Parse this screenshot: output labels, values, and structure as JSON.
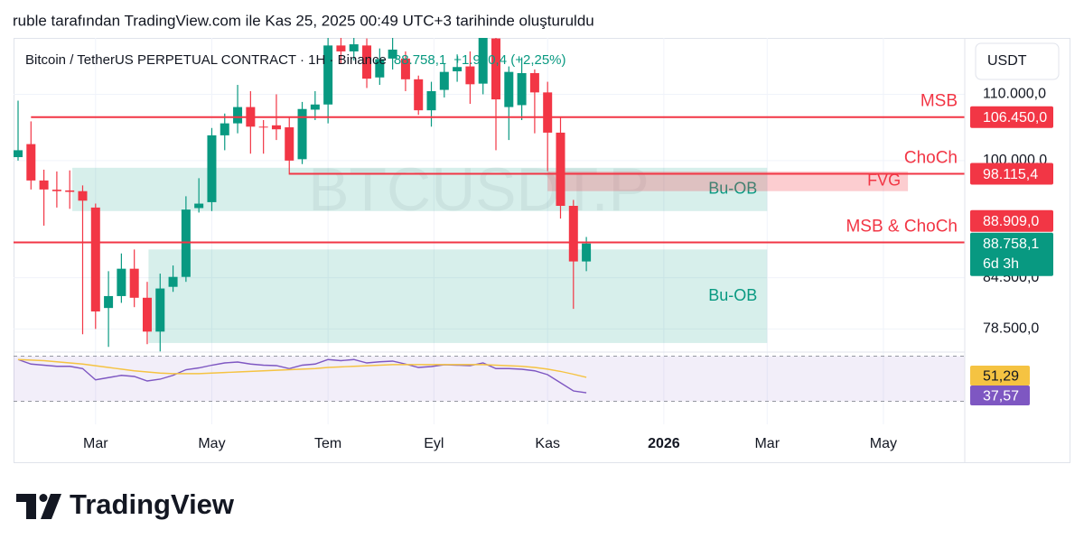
{
  "header": {
    "text": "ruble tarafından TradingView.com ile Kas 25, 2025 00:49 UTC+3 tarihinde oluşturuldu"
  },
  "brand": "TradingView",
  "chart_data": [
    {
      "type": "candlestick",
      "title": "Bitcoin / TetherUS PERPETUAL CONTRACT · 1H · Binance",
      "last_label": "88.758,1",
      "change": "+1.950,4 (+2,25%)",
      "countdown": "6d 3h",
      "unit": "USDT",
      "watermark": "BTCUSDT.P",
      "up_color": "#089981",
      "down_color": "#f23645",
      "log_scale": true,
      "grid": true,
      "x": [
        0,
        1,
        2,
        3,
        4,
        5,
        6,
        7,
        8,
        9,
        10,
        11,
        12,
        13,
        14,
        15,
        16,
        17,
        18,
        19,
        20,
        21,
        22,
        23,
        24,
        25,
        26,
        27,
        28,
        29,
        30,
        31,
        32,
        33,
        34,
        35,
        36,
        37,
        38,
        39,
        40,
        41,
        42,
        43,
        44
      ],
      "open": [
        100500,
        102400,
        97180,
        95900,
        95800,
        95700,
        93470,
        80900,
        82300,
        85600,
        82100,
        78200,
        83400,
        84600,
        93400,
        94200,
        103700,
        105500,
        108000,
        105000,
        105200,
        104900,
        100200,
        107600,
        108400,
        118000,
        117000,
        118000,
        112700,
        115800,
        115800,
        112400,
        107500,
        110700,
        113700,
        114500,
        111700,
        119200,
        108000,
        108300,
        113400,
        110300,
        104100,
        93700,
        86500
      ],
      "high": [
        109000,
        105800,
        98700,
        98450,
        98600,
        96500,
        94000,
        85300,
        87500,
        88000,
        84000,
        85000,
        86000,
        95000,
        97500,
        104800,
        107000,
        111500,
        110500,
        106000,
        110000,
        106500,
        108800,
        110500,
        119600,
        119600,
        119600,
        119200,
        117500,
        119600,
        117000,
        113000,
        112000,
        115000,
        116500,
        117000,
        119600,
        119600,
        114500,
        116000,
        114000,
        112000,
        106500,
        94500,
        89600
      ],
      "low": [
        100000,
        95930,
        91070,
        93470,
        93300,
        77900,
        78500,
        76500,
        81500,
        81000,
        76800,
        76000,
        82800,
        84000,
        92800,
        93000,
        101500,
        104000,
        101000,
        101000,
        103000,
        98000,
        99500,
        106000,
        105500,
        115000,
        115500,
        111000,
        111500,
        114000,
        110500,
        106800,
        105000,
        109500,
        112000,
        108500,
        110000,
        101500,
        103000,
        106000,
        104000,
        98500,
        92000,
        80800,
        85300
      ],
      "close": [
        101500,
        97180,
        95930,
        95700,
        95600,
        94400,
        80500,
        82300,
        85600,
        82100,
        78200,
        83200,
        84600,
        93200,
        94000,
        103700,
        105500,
        108000,
        105000,
        104900,
        104600,
        100000,
        107700,
        108400,
        118000,
        117000,
        118200,
        112500,
        115700,
        117300,
        112400,
        107500,
        110500,
        113600,
        114400,
        111600,
        119600,
        109200,
        113600,
        113400,
        110300,
        104100,
        93700,
        86500,
        88758.1
      ],
      "xlim": [
        -0.35,
        73.3
      ],
      "xticks": [
        {
          "value": 6,
          "label": "Mar"
        },
        {
          "value": 15,
          "label": "May"
        },
        {
          "value": 24,
          "label": "Tem"
        },
        {
          "value": 32.2,
          "label": "Eyl"
        },
        {
          "value": 41,
          "label": "Kas"
        },
        {
          "value": 50,
          "label": "2026"
        },
        {
          "value": 58,
          "label": "Mar"
        },
        {
          "value": 67,
          "label": "May"
        }
      ],
      "ylim": [
        75930,
        119600
      ],
      "yticks": [
        {
          "value": 78500,
          "label": "78.500,0"
        },
        {
          "value": 84500,
          "label": "84.500,0"
        },
        {
          "value": 100000,
          "label": "100.000,0"
        },
        {
          "value": 110000,
          "label": "110.000,0"
        }
      ],
      "levels": [
        {
          "name": "MSB",
          "value": 106450,
          "label": "106.450,0",
          "from": 1,
          "color": "#f23645"
        },
        {
          "name": "ChoCh",
          "value": 98115.4,
          "label": "98.115,4",
          "from": 21,
          "color": "#f23645"
        },
        {
          "name": "MSB & ChoCh",
          "value": 88909,
          "label": "88.909,0",
          "color": "#f23645"
        }
      ],
      "zones": [
        {
          "name": "Bu-OB",
          "from": 4.2,
          "to": 58,
          "top": 98970,
          "bottom": 93000,
          "color": "#089981"
        },
        {
          "name": "Bu-OB",
          "from": 10.1,
          "to": 58,
          "top": 88000,
          "bottom": 76930,
          "color": "#089981"
        },
        {
          "name": "FVG",
          "from": 41,
          "to": 68.9,
          "top": 98450,
          "bottom": 95700,
          "color": "#f23645"
        }
      ]
    },
    {
      "type": "line",
      "ylim": [
        28,
        72
      ],
      "band": [
        30,
        70
      ],
      "band_color": "#7e57c2",
      "series": [
        {
          "color": "#7e57c2",
          "last_label": "37,57",
          "values": [
            67,
            63,
            62,
            61,
            61,
            59,
            49,
            51,
            53,
            52,
            48,
            49.6,
            53,
            58,
            59.6,
            62,
            64,
            64.8,
            63,
            62,
            61.6,
            59,
            62,
            63,
            67,
            66,
            67,
            64,
            65,
            65.6,
            63,
            60,
            60.8,
            62.4,
            62,
            61.6,
            64,
            59,
            59,
            58.4,
            57,
            53.6,
            46.4,
            39.2,
            37.57
          ]
        },
        {
          "color": "#f5c342",
          "last_label": "51,29",
          "values": [
            67,
            66.5,
            66,
            65,
            64,
            63,
            61.5,
            60,
            58.5,
            57,
            56,
            55,
            54.5,
            54.5,
            54.5,
            55,
            55.5,
            56,
            56.5,
            57,
            57.5,
            58,
            58.5,
            59,
            60,
            60.5,
            61,
            61.5,
            62,
            62.5,
            62.5,
            62.5,
            62.5,
            62.5,
            62.5,
            62.5,
            62.5,
            62,
            61.5,
            61,
            60,
            58.5,
            56.5,
            54,
            51.29
          ]
        }
      ]
    }
  ]
}
